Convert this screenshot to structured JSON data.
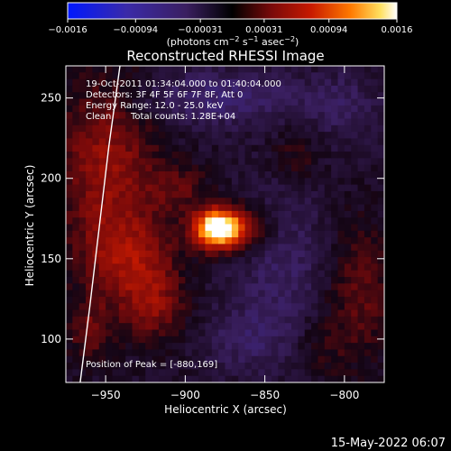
{
  "chart_data": {
    "type": "heatmap",
    "title": "Reconstructed RHESSI Image",
    "xlabel": "Heliocentric X (arcsec)",
    "ylabel": "Heliocentric Y (arcsec)",
    "xlim": [
      -975,
      -775
    ],
    "ylim": [
      73,
      270
    ],
    "xticks": [
      -950,
      -900,
      -850,
      -800
    ],
    "xtick_labels": [
      "−950",
      "−900",
      "−850",
      "−800"
    ],
    "yticks": [
      100,
      150,
      200,
      250
    ],
    "ytick_labels": [
      "100",
      "150",
      "200",
      "250"
    ],
    "colorbar": {
      "range": [
        -0.0016,
        0.0016
      ],
      "ticks": [
        -0.0016,
        -0.00094,
        -0.00031,
        0.00031,
        0.00094,
        0.0016
      ],
      "tick_labels": [
        "−0.0016",
        "−0.00094",
        "−0.00031",
        "0.00031",
        "0.00094",
        "0.0016"
      ],
      "label_main": "(photons cm",
      "label_exp1": "−2",
      "label_mid": " s",
      "label_exp2": "−1",
      "label_mid2": " asec",
      "label_exp3": "−2",
      "label_end": ")"
    },
    "annotations": {
      "time_range": "19-Oct-2011 01:34:04.000 to 01:40:04.000",
      "detectors": "Detectors: 3F 4F 5F 6F 7F 8F, Att 0",
      "energy_range": "Energy Range: 12.0 - 25.0 keV",
      "method": "Clean",
      "total_counts": "Total counts: 1.28E+04",
      "peak_position": "Position of Peak = [-880,169]"
    },
    "peak": {
      "x": -880,
      "y": 169
    },
    "limb_arc": [
      [
        -966,
        73
      ],
      [
        -960,
        120
      ],
      [
        -954,
        170
      ],
      [
        -948,
        220
      ],
      [
        -941,
        270
      ]
    ],
    "blobs": [
      {
        "x": -880,
        "y": 169,
        "sx": 10,
        "sy": 8,
        "a": 1.0
      },
      {
        "x": -868,
        "y": 168,
        "sx": 16,
        "sy": 10,
        "a": 0.45
      },
      {
        "x": -950,
        "y": 210,
        "sx": 22,
        "sy": 40,
        "a": 0.38
      },
      {
        "x": -935,
        "y": 150,
        "sx": 20,
        "sy": 20,
        "a": 0.35
      },
      {
        "x": -920,
        "y": 120,
        "sx": 14,
        "sy": 16,
        "a": 0.3
      },
      {
        "x": -960,
        "y": 105,
        "sx": 10,
        "sy": 14,
        "a": 0.25
      },
      {
        "x": -905,
        "y": 195,
        "sx": 14,
        "sy": 10,
        "a": 0.22
      },
      {
        "x": -790,
        "y": 130,
        "sx": 14,
        "sy": 30,
        "a": 0.25
      },
      {
        "x": -830,
        "y": 215,
        "sx": 10,
        "sy": 12,
        "a": 0.15
      },
      {
        "x": -815,
        "y": 95,
        "sx": 12,
        "sy": 14,
        "a": 0.12
      },
      {
        "x": -880,
        "y": 250,
        "sx": 40,
        "sy": 12,
        "a": -0.25
      },
      {
        "x": -840,
        "y": 150,
        "sx": 20,
        "sy": 30,
        "a": -0.2
      },
      {
        "x": -860,
        "y": 100,
        "sx": 20,
        "sy": 15,
        "a": -0.18
      },
      {
        "x": -800,
        "y": 245,
        "sx": 15,
        "sy": 15,
        "a": -0.15
      }
    ]
  },
  "footer": {
    "timestamp": "15-May-2022 06:07"
  }
}
